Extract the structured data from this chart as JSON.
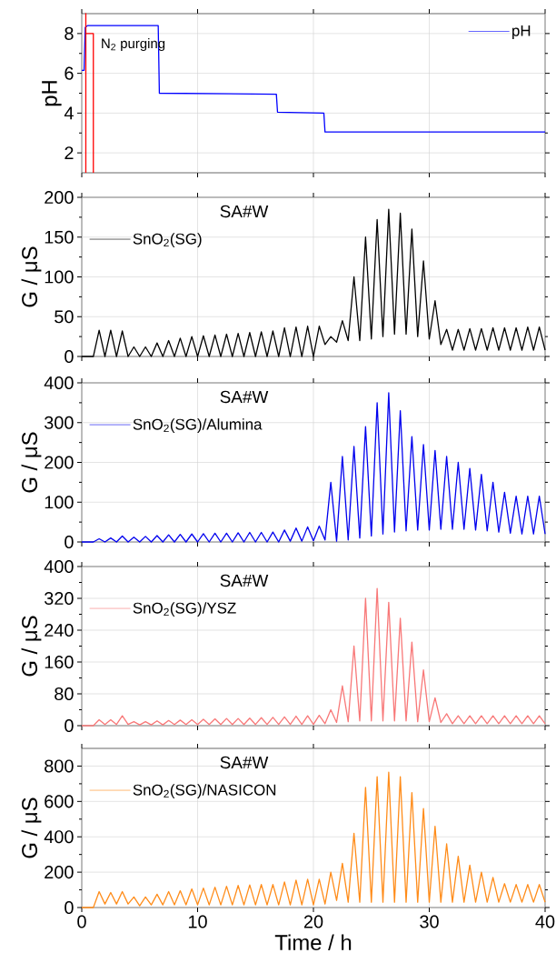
{
  "chart_data": [
    {
      "type": "line",
      "ylabel": "pH",
      "xlim": [
        0,
        40
      ],
      "xticks": [
        0,
        10,
        20,
        30,
        40
      ],
      "ylim": [
        1,
        9
      ],
      "yticks": [
        2,
        4,
        6,
        8
      ],
      "grid": true,
      "legend": "top right",
      "tick_labels": "y",
      "annotations": [
        {
          "text": "N$_{2}$ purging",
          "x": 1.0,
          "y": 8
        }
      ],
      "series": [
        {
          "name": "pH",
          "color": "#0000ff",
          "x": [
            0,
            0.2,
            0.3,
            0.5,
            6.6,
            6.7,
            16.8,
            16.9,
            20.9,
            21.0,
            40
          ],
          "values": [
            6.15,
            6.15,
            8.3,
            8.4,
            8.4,
            5.0,
            4.95,
            4.05,
            4.0,
            3.05,
            3.05
          ]
        },
        {
          "color": "#ff0000",
          "x": [
            0.35,
            0.35,
            0.35,
            1.0,
            1.0
          ],
          "values": [
            1,
            9,
            8,
            8,
            1
          ]
        }
      ]
    },
    {
      "type": "line",
      "ylabel": "G / μS",
      "xlim": [
        0,
        40
      ],
      "xticks": [
        0,
        10,
        20,
        30,
        40
      ],
      "ylim": [
        0,
        200
      ],
      "yticks": [
        0,
        50,
        100,
        150,
        200
      ],
      "grid": true,
      "legend": "top left",
      "tick_labels": "y",
      "annotations": [
        "SA#W"
      ],
      "x": [
        0,
        0.5,
        1,
        1.5,
        2,
        2.5,
        3,
        3.5,
        4,
        4.5,
        5,
        5.5,
        6,
        6.5,
        7,
        7.5,
        8,
        8.5,
        9,
        9.5,
        10,
        10.5,
        11,
        11.5,
        12,
        12.5,
        13,
        13.5,
        14,
        14.5,
        15,
        15.5,
        16,
        16.5,
        17,
        17.5,
        18,
        18.5,
        19,
        19.5,
        20,
        20.5,
        21,
        21.5,
        22,
        22.5,
        23,
        23.5,
        24,
        24.5,
        25,
        25.5,
        26,
        26.5,
        27,
        27.5,
        28,
        28.5,
        29,
        29.5,
        30,
        30.5,
        31,
        31.5,
        32,
        32.5,
        33,
        33.5,
        34,
        34.5,
        35,
        35.5,
        36,
        36.5,
        37,
        37.5,
        38,
        38.5,
        39,
        39.5,
        40
      ],
      "series": [
        {
          "name": "SnO$_{2}$(SG)",
          "color": "#000000",
          "values": [
            0,
            0,
            0,
            33,
            0,
            33,
            0,
            32,
            0,
            12,
            0,
            12,
            0,
            17,
            0,
            20,
            0,
            23,
            0,
            25,
            0,
            26,
            0,
            27,
            0,
            28,
            0,
            29,
            0,
            30,
            0,
            31,
            0,
            32,
            0,
            36,
            0,
            37,
            0,
            38,
            0,
            38,
            15,
            25,
            18,
            45,
            20,
            100,
            20,
            150,
            22,
            172,
            25,
            185,
            28,
            180,
            28,
            160,
            25,
            120,
            22,
            70,
            15,
            34,
            8,
            34,
            8,
            35,
            8,
            35,
            8,
            36,
            8,
            36,
            8,
            36,
            8,
            37,
            8,
            37,
            8
          ]
        }
      ]
    },
    {
      "type": "line",
      "ylabel": "G / μS",
      "xlim": [
        0,
        40
      ],
      "xticks": [
        0,
        10,
        20,
        30,
        40
      ],
      "ylim": [
        0,
        400
      ],
      "yticks": [
        0,
        100,
        200,
        300,
        400
      ],
      "grid": true,
      "legend": "top left",
      "tick_labels": "y",
      "annotations": [
        "SA#W"
      ],
      "x": [
        0,
        0.5,
        1,
        1.5,
        2,
        2.5,
        3,
        3.5,
        4,
        4.5,
        5,
        5.5,
        6,
        6.5,
        7,
        7.5,
        8,
        8.5,
        9,
        9.5,
        10,
        10.5,
        11,
        11.5,
        12,
        12.5,
        13,
        13.5,
        14,
        14.5,
        15,
        15.5,
        16,
        16.5,
        17,
        17.5,
        18,
        18.5,
        19,
        19.5,
        20,
        20.5,
        21,
        21.5,
        22,
        22.5,
        23,
        23.5,
        24,
        24.5,
        25,
        25.5,
        26,
        26.5,
        27,
        27.5,
        28,
        28.5,
        29,
        29.5,
        30,
        30.5,
        31,
        31.5,
        32,
        32.5,
        33,
        33.5,
        34,
        34.5,
        35,
        35.5,
        36,
        36.5,
        37,
        37.5,
        38,
        38.5,
        39,
        39.5,
        40
      ],
      "series": [
        {
          "name": "SnO$_{2}$(SG)/Alumina",
          "color": "#0000ee",
          "values": [
            0,
            0,
            0,
            8,
            0,
            10,
            0,
            15,
            0,
            12,
            0,
            14,
            0,
            16,
            0,
            18,
            0,
            19,
            0,
            20,
            0,
            21,
            0,
            22,
            0,
            22,
            0,
            23,
            0,
            24,
            0,
            24,
            0,
            25,
            0,
            30,
            2,
            35,
            2,
            38,
            3,
            40,
            5,
            150,
            2,
            215,
            5,
            240,
            10,
            290,
            15,
            350,
            20,
            375,
            25,
            330,
            28,
            265,
            30,
            245,
            30,
            230,
            32,
            215,
            32,
            200,
            32,
            185,
            30,
            170,
            28,
            150,
            25,
            125,
            22,
            115,
            20,
            115,
            20,
            115,
            20
          ]
        }
      ]
    },
    {
      "type": "line",
      "ylabel": "G / μS",
      "xlim": [
        0,
        40
      ],
      "xticks": [
        0,
        10,
        20,
        30,
        40
      ],
      "ylim": [
        0,
        400
      ],
      "yticks": [
        0,
        80,
        160,
        240,
        320,
        400
      ],
      "grid": true,
      "legend": "top left",
      "tick_labels": "y",
      "annotations": [
        "SA#W"
      ],
      "x": [
        0,
        0.5,
        1,
        1.5,
        2,
        2.5,
        3,
        3.5,
        4,
        4.5,
        5,
        5.5,
        6,
        6.5,
        7,
        7.5,
        8,
        8.5,
        9,
        9.5,
        10,
        10.5,
        11,
        11.5,
        12,
        12.5,
        13,
        13.5,
        14,
        14.5,
        15,
        15.5,
        16,
        16.5,
        17,
        17.5,
        18,
        18.5,
        19,
        19.5,
        20,
        20.5,
        21,
        21.5,
        22,
        22.5,
        23,
        23.5,
        24,
        24.5,
        25,
        25.5,
        26,
        26.5,
        27,
        27.5,
        28,
        28.5,
        29,
        29.5,
        30,
        30.5,
        31,
        31.5,
        32,
        32.5,
        33,
        33.5,
        34,
        34.5,
        35,
        35.5,
        36,
        36.5,
        37,
        37.5,
        38,
        38.5,
        39,
        39.5,
        40
      ],
      "series": [
        {
          "name": "SnO$_{2}$(SG)/YSZ",
          "color": "#f87878",
          "values": [
            0,
            0,
            0,
            15,
            3,
            15,
            3,
            25,
            3,
            10,
            2,
            10,
            2,
            12,
            2,
            13,
            3,
            14,
            3,
            15,
            3,
            16,
            3,
            17,
            3,
            18,
            3,
            18,
            3,
            19,
            3,
            20,
            3,
            21,
            3,
            22,
            3,
            24,
            3,
            25,
            3,
            26,
            5,
            40,
            8,
            100,
            10,
            200,
            12,
            320,
            12,
            345,
            12,
            310,
            12,
            270,
            12,
            210,
            10,
            140,
            10,
            70,
            8,
            30,
            5,
            25,
            5,
            25,
            5,
            25,
            5,
            25,
            5,
            25,
            5,
            25,
            5,
            25,
            5,
            25,
            5
          ]
        }
      ]
    },
    {
      "type": "line",
      "xlabel": "Time / h",
      "ylabel": "G / μS",
      "xlim": [
        0,
        40
      ],
      "xticks": [
        0,
        10,
        20,
        30,
        40
      ],
      "ylim": [
        0,
        900
      ],
      "yticks": [
        0,
        200,
        400,
        600,
        800
      ],
      "grid": true,
      "legend": "top left",
      "annotations": [
        "SA#W"
      ],
      "x": [
        0,
        0.5,
        1,
        1.5,
        2,
        2.5,
        3,
        3.5,
        4,
        4.5,
        5,
        5.5,
        6,
        6.5,
        7,
        7.5,
        8,
        8.5,
        9,
        9.5,
        10,
        10.5,
        11,
        11.5,
        12,
        12.5,
        13,
        13.5,
        14,
        14.5,
        15,
        15.5,
        16,
        16.5,
        17,
        17.5,
        18,
        18.5,
        19,
        19.5,
        20,
        20.5,
        21,
        21.5,
        22,
        22.5,
        23,
        23.5,
        24,
        24.5,
        25,
        25.5,
        26,
        26.5,
        27,
        27.5,
        28,
        28.5,
        29,
        29.5,
        30,
        30.5,
        31,
        31.5,
        32,
        32.5,
        33,
        33.5,
        34,
        34.5,
        35,
        35.5,
        36,
        36.5,
        37,
        37.5,
        38,
        38.5,
        39,
        39.5,
        40
      ],
      "series": [
        {
          "name": "SnO$_{2}$(SG)/NASICON",
          "color": "#ff8c1a",
          "values": [
            0,
            0,
            0,
            90,
            20,
            85,
            20,
            90,
            20,
            60,
            10,
            60,
            15,
            75,
            15,
            90,
            15,
            95,
            15,
            105,
            15,
            110,
            15,
            115,
            15,
            120,
            15,
            125,
            15,
            128,
            15,
            130,
            15,
            130,
            15,
            145,
            15,
            155,
            15,
            160,
            15,
            160,
            20,
            200,
            40,
            250,
            30,
            420,
            30,
            680,
            30,
            740,
            30,
            765,
            30,
            740,
            30,
            650,
            30,
            560,
            30,
            460,
            30,
            360,
            30,
            290,
            30,
            240,
            30,
            200,
            30,
            170,
            30,
            135,
            30,
            130,
            30,
            130,
            30,
            130,
            30
          ]
        }
      ]
    }
  ]
}
